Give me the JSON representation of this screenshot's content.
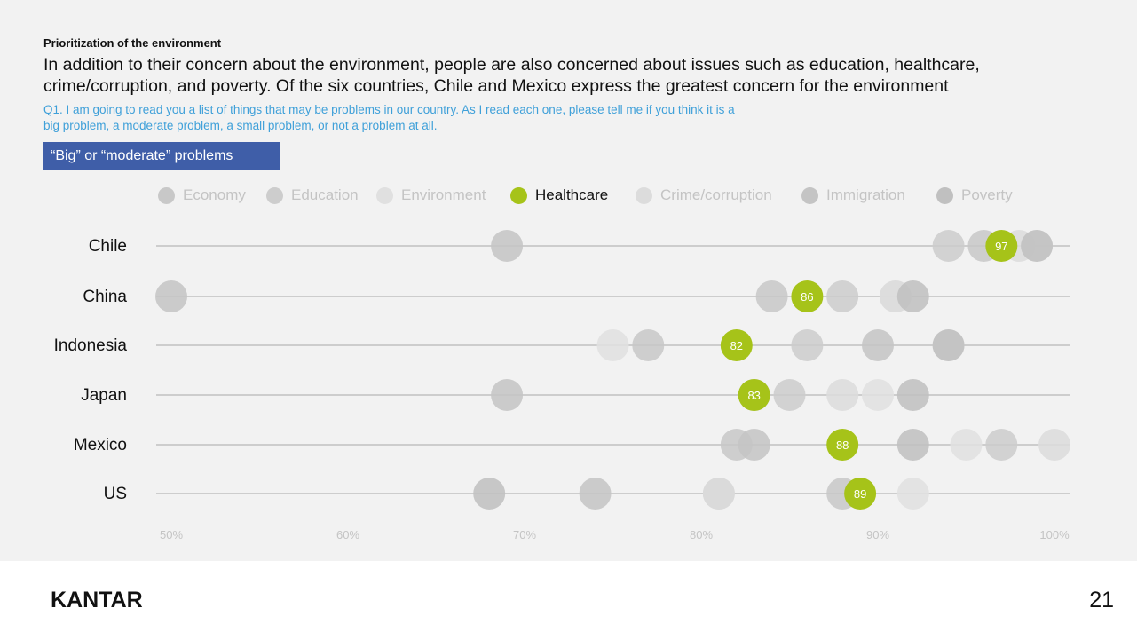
{
  "header": {
    "eyebrow": "Prioritization of the environment",
    "headline": "In addition to their concern about the environment, people are also concerned about issues such as education, healthcare, crime/corruption, and poverty. Of the six countries, Chile and Mexico express the greatest concern for the environment",
    "question": "Q1. I am going to read you a list of things that may be problems in our country. As I read each one, please tell me if you think it is a big problem, a moderate problem, a small problem, or not a problem at all.",
    "tag": "“Big” or “moderate” problems"
  },
  "colors": {
    "highlight": "#a6c319",
    "tag_bg": "#3f5ea8",
    "question_text": "#3fa0d9",
    "grid": "#a8a8a8",
    "tick_text": "#c4c4c4"
  },
  "chart_data": {
    "type": "scatter",
    "highlighted_series": "Healthcare",
    "xlim": [
      50,
      100
    ],
    "ticks": [
      {
        "value": 50,
        "label": "50%"
      },
      {
        "value": 60,
        "label": "60%"
      },
      {
        "value": 70,
        "label": "70%"
      },
      {
        "value": 80,
        "label": "80%"
      },
      {
        "value": 90,
        "label": "90%"
      },
      {
        "value": 100,
        "label": "100%"
      }
    ],
    "categories": [
      "Chile",
      "China",
      "Indonesia",
      "Japan",
      "Mexico",
      "US"
    ],
    "series": [
      {
        "name": "Economy",
        "color": "#c8c8c8",
        "values": [
          96,
          84,
          77,
          83,
          82,
          88
        ]
      },
      {
        "name": "Education",
        "color": "#cdcdcd",
        "values": [
          94,
          88,
          86,
          85,
          97,
          81
        ]
      },
      {
        "name": "Environment",
        "color": "#e0e0e0",
        "values": [
          99,
          91,
          75,
          90,
          95,
          92
        ]
      },
      {
        "name": "Healthcare",
        "color": "#a6c319",
        "values": [
          97,
          86,
          82,
          83,
          88,
          89
        ]
      },
      {
        "name": "Crime/corruption",
        "color": "#dcdcdc",
        "values": [
          98,
          91,
          94,
          88,
          100,
          81
        ]
      },
      {
        "name": "Immigration",
        "color": "#c4c4c4",
        "values": [
          69,
          50,
          90,
          69,
          83,
          74
        ]
      },
      {
        "name": "Poverty",
        "color": "#c0c0c0",
        "values": [
          99,
          92,
          94,
          92,
          92,
          68
        ]
      }
    ]
  },
  "footer": {
    "logo": "KANTAR",
    "page_number": "21"
  }
}
